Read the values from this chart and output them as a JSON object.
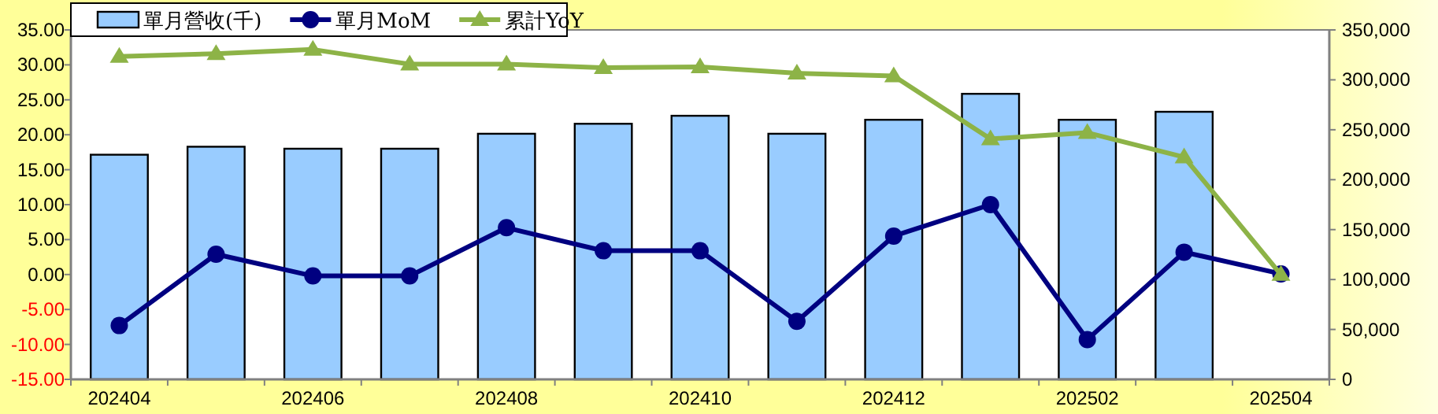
{
  "chart_data": {
    "type": "bar",
    "categories": [
      "202404",
      null,
      "202406",
      null,
      "202408",
      null,
      "202410",
      null,
      "202412",
      null,
      "202502",
      null,
      "202504"
    ],
    "series": [
      {
        "name": "單月營收(千)",
        "axis": "y2",
        "color": "#99ccff",
        "values": [
          225000,
          233000,
          231000,
          231000,
          246000,
          256000,
          264000,
          246000,
          260000,
          286000,
          260000,
          268000,
          null
        ]
      },
      {
        "name": "單月MoM",
        "type": "line",
        "marker": "circle",
        "color": "#000080",
        "values": [
          -7.3,
          2.9,
          -0.2,
          -0.2,
          6.7,
          3.4,
          3.4,
          -6.7,
          5.5,
          10.0,
          -9.3,
          3.2,
          0.1
        ]
      },
      {
        "name": "累計YoY",
        "type": "line",
        "marker": "triangle",
        "color": "#8db347",
        "values": [
          31.2,
          31.6,
          32.2,
          30.1,
          30.1,
          29.6,
          29.7,
          28.8,
          28.4,
          19.4,
          20.3,
          16.8,
          0.0
        ]
      }
    ],
    "ylim": [
      -15,
      35
    ],
    "yticks": [
      {
        "value": -15,
        "label": "-15.00"
      },
      {
        "value": -10,
        "label": "-10.00"
      },
      {
        "value": -5,
        "label": "-5.00"
      },
      {
        "value": 0,
        "label": "0.00"
      },
      {
        "value": 5,
        "label": "5.00"
      },
      {
        "value": 10,
        "label": "10.00"
      },
      {
        "value": 15,
        "label": "15.00"
      },
      {
        "value": 20,
        "label": "20.00"
      },
      {
        "value": 25,
        "label": "25.00"
      },
      {
        "value": 30,
        "label": "30.00"
      },
      {
        "value": 35,
        "label": "35.00"
      }
    ],
    "y2lim": [
      0,
      350000
    ],
    "y2ticks": [
      0,
      {
        "value": 50000,
        "label": "50,000"
      },
      {
        "value": 100000,
        "label": "100,000"
      },
      {
        "value": 150000,
        "label": "150,000"
      },
      {
        "value": 200000,
        "label": "200,000"
      },
      {
        "value": 250000,
        "label": "250,000"
      },
      {
        "value": 300000,
        "label": "300,000"
      },
      {
        "value": 350000,
        "label": "350,000"
      }
    ],
    "legend": "top left",
    "grid": false
  }
}
